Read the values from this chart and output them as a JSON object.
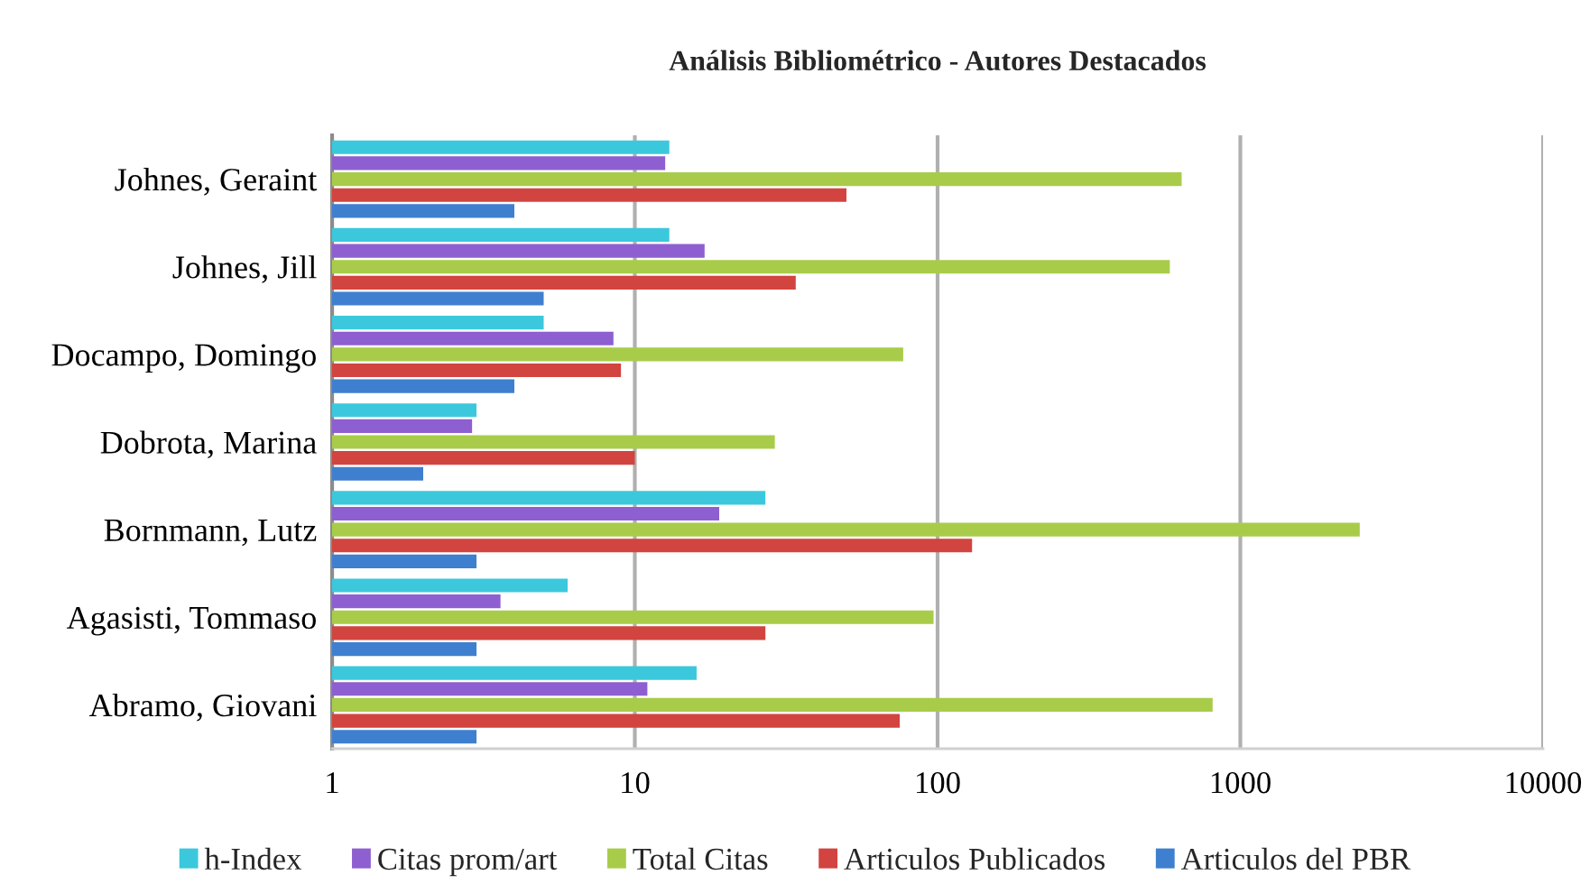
{
  "chart_data": {
    "type": "bar",
    "orientation": "horizontal",
    "title": "Análisis Bibliométrico - Autores Destacados",
    "categories": [
      "Johnes, Geraint",
      "Johnes, Jill",
      "Docampo, Domingo",
      "Dobrota, Marina",
      "Bornmann, Lutz",
      "Agasisti, Tommaso",
      "Abramo, Giovani"
    ],
    "series": [
      {
        "name": "h-Index",
        "color": "#3cc8dc",
        "values": [
          13,
          13,
          5,
          3,
          27,
          6,
          16
        ]
      },
      {
        "name": "Citas prom/art",
        "color": "#8e5fd0",
        "values": [
          12.6,
          17,
          8.5,
          2.9,
          19,
          3.6,
          11
        ]
      },
      {
        "name": "Total Citas",
        "color": "#a8cc4a",
        "values": [
          640,
          585,
          77,
          29,
          2480,
          97,
          810
        ]
      },
      {
        "name": "Articulos Publicados",
        "color": "#d2443f",
        "values": [
          50,
          34,
          9,
          10,
          130,
          27,
          75
        ]
      },
      {
        "name": "Articulos del PBR",
        "color": "#3f7fcf",
        "values": [
          4,
          5,
          4,
          2,
          3,
          3,
          3
        ]
      }
    ],
    "log": "x",
    "xlim": [
      1,
      10000
    ],
    "xticks": [
      1,
      10,
      100,
      1000,
      10000
    ],
    "grid": "x",
    "legend": "bottom"
  }
}
